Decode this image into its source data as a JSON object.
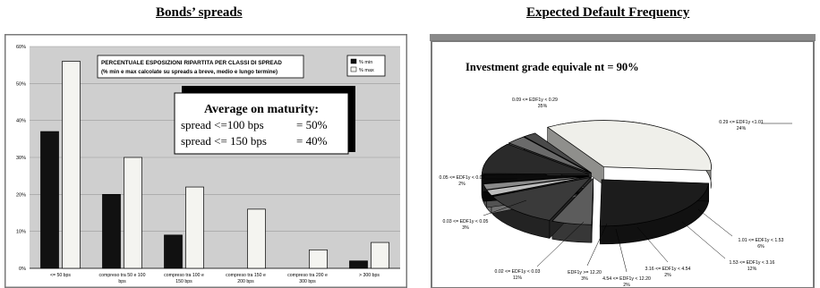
{
  "headings": {
    "left": "Bonds’ spreads",
    "right": "Expected Default Frequency"
  },
  "colors": {
    "min_series": "#111111",
    "max_series": "#f4f4f0",
    "plot_bg": "#cfcfcf",
    "frame_border": "#7a7a7a"
  },
  "bar_chart": {
    "title_line1": "PERCENTUALE ESPOSIZIONI RIPARTITA PER CLASSI DI SPREAD",
    "title_line2": "(% min e max calcolate su spreads a breve, medio e lungo termine)",
    "legend": [
      "% min",
      "% max"
    ],
    "callout": {
      "title": "Average on maturity:",
      "line1_label": "spread <=100 bps",
      "line1_value": "= 50%",
      "line2_label": "spread <= 150 bps",
      "line2_value": "= 40%"
    }
  },
  "pie_chart": {
    "subtitle": "Investment grade equivale nt = 90%"
  },
  "chart_data": [
    {
      "type": "bar",
      "title": "PERCENTUALE ESPOSIZIONI RIPARTITA PER CLASSI DI SPREAD",
      "subtitle": "(% min e max calcolate su spreads a breve, medio e lungo termine)",
      "categories": [
        [
          "<= 50 bps"
        ],
        [
          "compreso tra 50 e 100",
          "bps"
        ],
        [
          "compreso tra 100 e",
          "150 bps"
        ],
        [
          "compreso tra 150 e",
          "200 bps"
        ],
        [
          "compreso tra 200 e",
          "300 bps"
        ],
        [
          "> 300 bps"
        ]
      ],
      "series": [
        {
          "name": "% min",
          "values": [
            37,
            20,
            9,
            0,
            0,
            2
          ]
        },
        {
          "name": "% max",
          "values": [
            56,
            30,
            22,
            16,
            5,
            7
          ]
        }
      ],
      "yticks": [
        "0%",
        "10%",
        "20%",
        "30%",
        "40%",
        "50%",
        "60%"
      ],
      "ylim": [
        0,
        60
      ],
      "grid": true,
      "legend_position": "top-right"
    },
    {
      "type": "pie",
      "style": "3d-exploded",
      "slices": [
        {
          "label": "0.09 <= EDF1y < 0.29",
          "value": 35,
          "pct": "35%",
          "color": "#efefea"
        },
        {
          "label": "0.29 <= EDF1y <1.01",
          "value": 24,
          "pct": "24%",
          "color": "#1c1c1c"
        },
        {
          "label": "1.01 <= EDF1y < 1.53",
          "value": 6,
          "pct": "6%",
          "color": "#5c5c5c"
        },
        {
          "label": "1.53 <= EDF1y < 3.16",
          "value": 12,
          "pct": "12%",
          "color": "#3a3a3a"
        },
        {
          "label": "3.16 <= EDF1y < 4.54",
          "value": 2,
          "pct": "2%",
          "color": "#bdbdbd"
        },
        {
          "label": "4.54 <= EDF1y < 12.20",
          "value": 2,
          "pct": "2%",
          "color": "#8a8a8a"
        },
        {
          "label": "EDF1y >= 12.20",
          "value": 3,
          "pct": "3%",
          "color": "#0c0c0c"
        },
        {
          "label": "0.02 <= EDF1y < 0.03",
          "value": 11,
          "pct": "11%",
          "color": "#2a2a2a"
        },
        {
          "label": "0.03 <= EDF1y < 0.05",
          "value": 3,
          "pct": "3%",
          "color": "#6a6a6a"
        },
        {
          "label": "0.05 <= EDF1y < 0.09",
          "value": 2,
          "pct": "2%",
          "color": "#4a4a4a"
        }
      ]
    }
  ]
}
